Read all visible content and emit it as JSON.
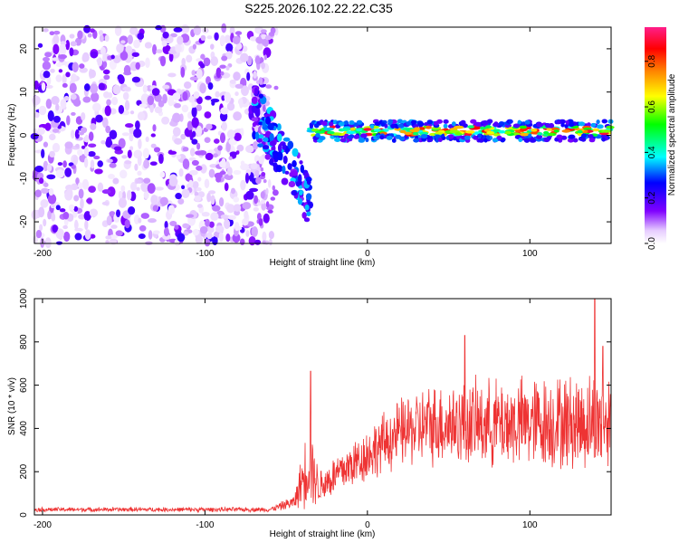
{
  "title": "S225.2026.102.22.22.C35",
  "chart_data": [
    {
      "type": "heatmap",
      "xlabel": "Height of straight line (km)",
      "ylabel": "Frequency (Hz)",
      "xlim": [
        -205,
        150
      ],
      "ylim": [
        -25,
        25
      ],
      "xticks": [
        -200,
        -100,
        0,
        100
      ],
      "yticks": [
        -20,
        -10,
        0,
        10,
        20
      ],
      "colorbar": {
        "label": "Normalized spectral amplitude",
        "range": [
          0,
          0.95
        ],
        "ticks": [
          "0.0",
          "0.2",
          "0.4",
          "0.6",
          "0.8"
        ],
        "tick_values": [
          0,
          0.2,
          0.4,
          0.6,
          0.8
        ],
        "colors": [
          "#ffffff",
          "#e6ccff",
          "#8000ff",
          "#0000ff",
          "#00ffff",
          "#00ff00",
          "#ffff00",
          "#ff8000",
          "#ff0000",
          "#ff1e8a"
        ]
      },
      "regions": [
        {
          "name": "noise",
          "x_range": [
            -205,
            -60
          ],
          "freq_range": [
            -25,
            25
          ],
          "amplitude": "low (0.05–0.2)"
        },
        {
          "name": "transition",
          "x_range": [
            -70,
            -35
          ],
          "freq_from": 6,
          "freq_to": -15,
          "amplitude": "0.2–0.6"
        },
        {
          "name": "carrier",
          "x_range": [
            -35,
            150
          ],
          "freq": 1,
          "amplitude": "0.3–0.95"
        }
      ]
    },
    {
      "type": "line",
      "xlabel": "Height of straight line (km)",
      "ylabel": "SNR (10 * v/v)",
      "xlim": [
        -205,
        150
      ],
      "ylim": [
        0,
        1000
      ],
      "xticks": [
        -200,
        -100,
        0,
        100
      ],
      "yticks": [
        0,
        200,
        400,
        600,
        800,
        1000
      ],
      "series": [
        {
          "name": "SNR",
          "color": "#ee3333",
          "profile": [
            {
              "x": -205,
              "mean": 25,
              "spread": 10
            },
            {
              "x": -60,
              "mean": 25,
              "spread": 10
            },
            {
              "x": -45,
              "mean": 60,
              "spread": 30
            },
            {
              "x": -36,
              "mean": 250,
              "spread": 200
            },
            {
              "x": -30,
              "mean": 130,
              "spread": 80
            },
            {
              "x": 0,
              "mean": 280,
              "spread": 120
            },
            {
              "x": 20,
              "mean": 380,
              "spread": 150
            },
            {
              "x": 40,
              "mean": 420,
              "spread": 180
            },
            {
              "x": 150,
              "mean": 430,
              "spread": 220
            }
          ],
          "peaks": [
            {
              "x": -35,
              "y": 665
            },
            {
              "x": 60,
              "y": 830
            },
            {
              "x": 140,
              "y": 1000
            },
            {
              "x": 145,
              "y": 780
            }
          ]
        }
      ]
    }
  ]
}
